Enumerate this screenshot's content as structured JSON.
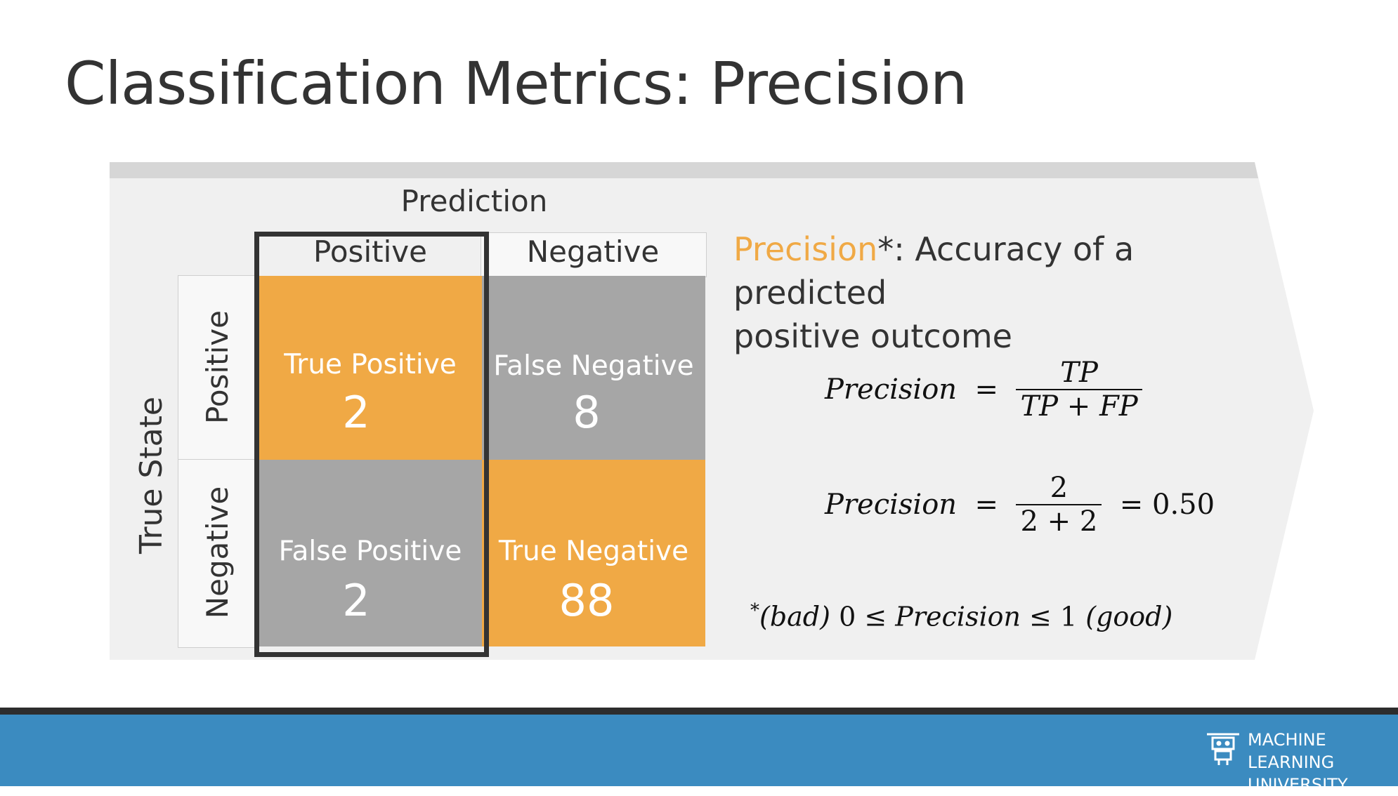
{
  "title": "Classification Metrics: Precision",
  "matrix": {
    "prediction_label": "Prediction",
    "true_state_label": "True State",
    "col_headers": [
      "Positive",
      "Negative"
    ],
    "row_headers": [
      "Positive",
      "Negative"
    ],
    "cells": {
      "tp": {
        "label": "True Positive",
        "value": "2"
      },
      "fn": {
        "label": "False Negative",
        "value": "8"
      },
      "fp": {
        "label": "False Positive",
        "value": "2"
      },
      "tn": {
        "label": "True Negative",
        "value": "88"
      }
    }
  },
  "definition": {
    "term": "Precision",
    "rest_line1": "*: Accuracy of a predicted",
    "line2": "positive outcome"
  },
  "formula1": {
    "lhs": "Precision",
    "num": "TP",
    "den_a": "TP",
    "den_op": "+",
    "den_b": "FP"
  },
  "formula2": {
    "lhs": "Precision",
    "num": "2",
    "den_a": "2",
    "den_op": "+",
    "den_b": "2",
    "result": "0.50"
  },
  "range_note": {
    "star": "*",
    "bad": "(bad)",
    "low": "0",
    "op": "≤",
    "term": "Precision",
    "high": "1",
    "good": "(good)"
  },
  "footer": {
    "line1": "MACHINE LEARNING",
    "line2": "UNIVERSITY"
  },
  "colors": {
    "orange": "#f0a945",
    "gray": "#a6a6a6",
    "panel": "#f0f0f0",
    "blue": "#3b8bc0",
    "precision_text": "#f0a945"
  }
}
